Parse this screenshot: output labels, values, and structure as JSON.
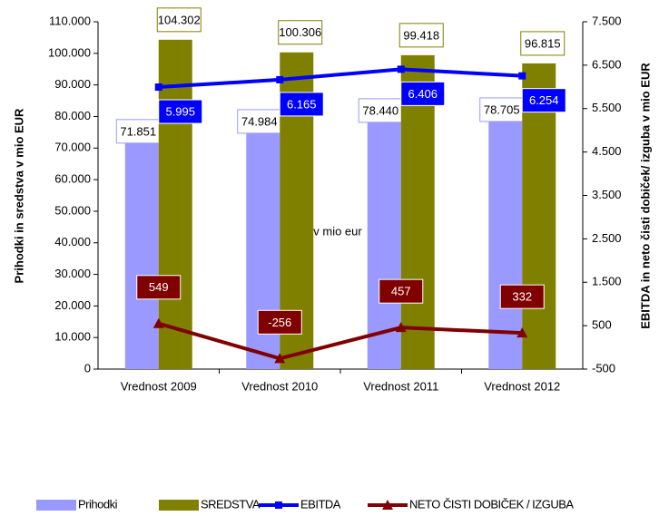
{
  "chart_data": {
    "type": "bar",
    "categories": [
      "Vrednost 2009",
      "Vrednost 2010",
      "Vrednost 2011",
      "Vrednost 2012"
    ],
    "annotation": "v mio eur",
    "y_label": "Prihodki in sredstva v mio EUR",
    "y2_label": "EBITDA in neto čisti dobiček/ izguba v mio EUR",
    "ylim": [
      0,
      110000
    ],
    "yticks": [
      0,
      {
        "value": 10000,
        "label": "10.000"
      },
      {
        "value": 20000,
        "label": "20.000"
      },
      {
        "value": 30000,
        "label": "30.000"
      },
      {
        "value": 40000,
        "label": "40.000"
      },
      {
        "value": 50000,
        "label": "50.000"
      },
      {
        "value": 60000,
        "label": "60.000"
      },
      {
        "value": 70000,
        "label": "70.000"
      },
      {
        "value": 80000,
        "label": "80.000"
      },
      {
        "value": 90000,
        "label": "90.000"
      },
      {
        "value": 100000,
        "label": "100.000"
      },
      {
        "value": 110000,
        "label": "110.000"
      }
    ],
    "y2lim": [
      -500,
      7500
    ],
    "y2ticks": [
      -500,
      500,
      {
        "value": 1500,
        "label": "1.500"
      },
      {
        "value": 2500,
        "label": "2.500"
      },
      {
        "value": 3500,
        "label": "3.500"
      },
      {
        "value": 4500,
        "label": "4.500"
      },
      {
        "value": 5500,
        "label": "5.500"
      },
      {
        "value": 6500,
        "label": "6.500"
      },
      {
        "value": 7500,
        "label": "7.500"
      }
    ],
    "series": [
      {
        "name": "Prihodki",
        "kind": "bar",
        "color": "#9999ff",
        "values": [
          71851,
          74984,
          78440,
          78705
        ],
        "value_labels": [
          "71.851",
          "74.984",
          "78.440",
          "78.705"
        ]
      },
      {
        "name": "SREDSTVA",
        "kind": "bar",
        "color": "#808000",
        "values": [
          104302,
          100306,
          99418,
          96815
        ],
        "value_labels": [
          "104.302",
          "100.306",
          "99.418",
          "96.815"
        ]
      },
      {
        "name": "EBITDA",
        "kind": "line",
        "axis": "y2",
        "color": "#0000ff",
        "values": [
          5995,
          6165,
          6406,
          6254
        ],
        "value_labels": [
          "5.995",
          "6.165",
          "6.406",
          "6.254"
        ]
      },
      {
        "name": "NETO ČISTI DOBIČEK / IZGUBA",
        "kind": "line",
        "axis": "y2",
        "color": "#800000",
        "values": [
          549,
          -256,
          457,
          332
        ]
      }
    ]
  }
}
